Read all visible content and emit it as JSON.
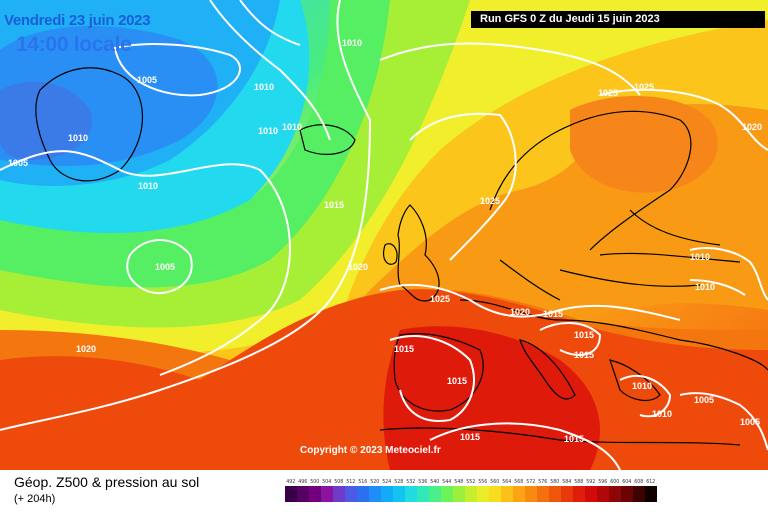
{
  "header": {
    "date": "Vendredi 23 juin 2023",
    "time": "14:00 locale",
    "run": "Run GFS 0 Z du Jeudi 15 juin 2023"
  },
  "map": {
    "copyright": "Copyright © 2023 Meteociel.fr",
    "pressure_labels": [
      "1005",
      "1010",
      "1005",
      "1010",
      "1010",
      "1010",
      "1010",
      "1010",
      "1005",
      "1015",
      "1020",
      "1020",
      "1025",
      "1025",
      "1025",
      "1020",
      "1010",
      "1010",
      "1025",
      "1020",
      "1015",
      "1015",
      "1015",
      "1015",
      "1015",
      "1010",
      "1010",
      "1005",
      "1005",
      "1015",
      "1015"
    ]
  },
  "footer": {
    "title": "Géop. Z500 & pression au sol",
    "lead": "(+ 204h)"
  },
  "legend": {
    "values": [
      "492",
      "496",
      "500",
      "504",
      "508",
      "512",
      "516",
      "520",
      "524",
      "528",
      "532",
      "536",
      "540",
      "544",
      "548",
      "552",
      "556",
      "560",
      "564",
      "568",
      "572",
      "576",
      "580",
      "584",
      "588",
      "592",
      "596",
      "600",
      "604",
      "608",
      "612"
    ],
    "colors": [
      "#3a0046",
      "#560066",
      "#72007e",
      "#8a14a0",
      "#6e3cc8",
      "#4c5ae6",
      "#2c70f0",
      "#1e8ef8",
      "#14aaf8",
      "#14c4f0",
      "#20dce0",
      "#32e8b8",
      "#4aef8a",
      "#6cf25a",
      "#9af03c",
      "#c6ee30",
      "#eaec2a",
      "#f8dc1e",
      "#fcc01a",
      "#fba416",
      "#f88a12",
      "#f4700e",
      "#ee560c",
      "#e63a0a",
      "#de1e0a",
      "#d20a0a",
      "#b00808",
      "#8e0606",
      "#6a0404",
      "#3e0202",
      "#100000"
    ]
  }
}
